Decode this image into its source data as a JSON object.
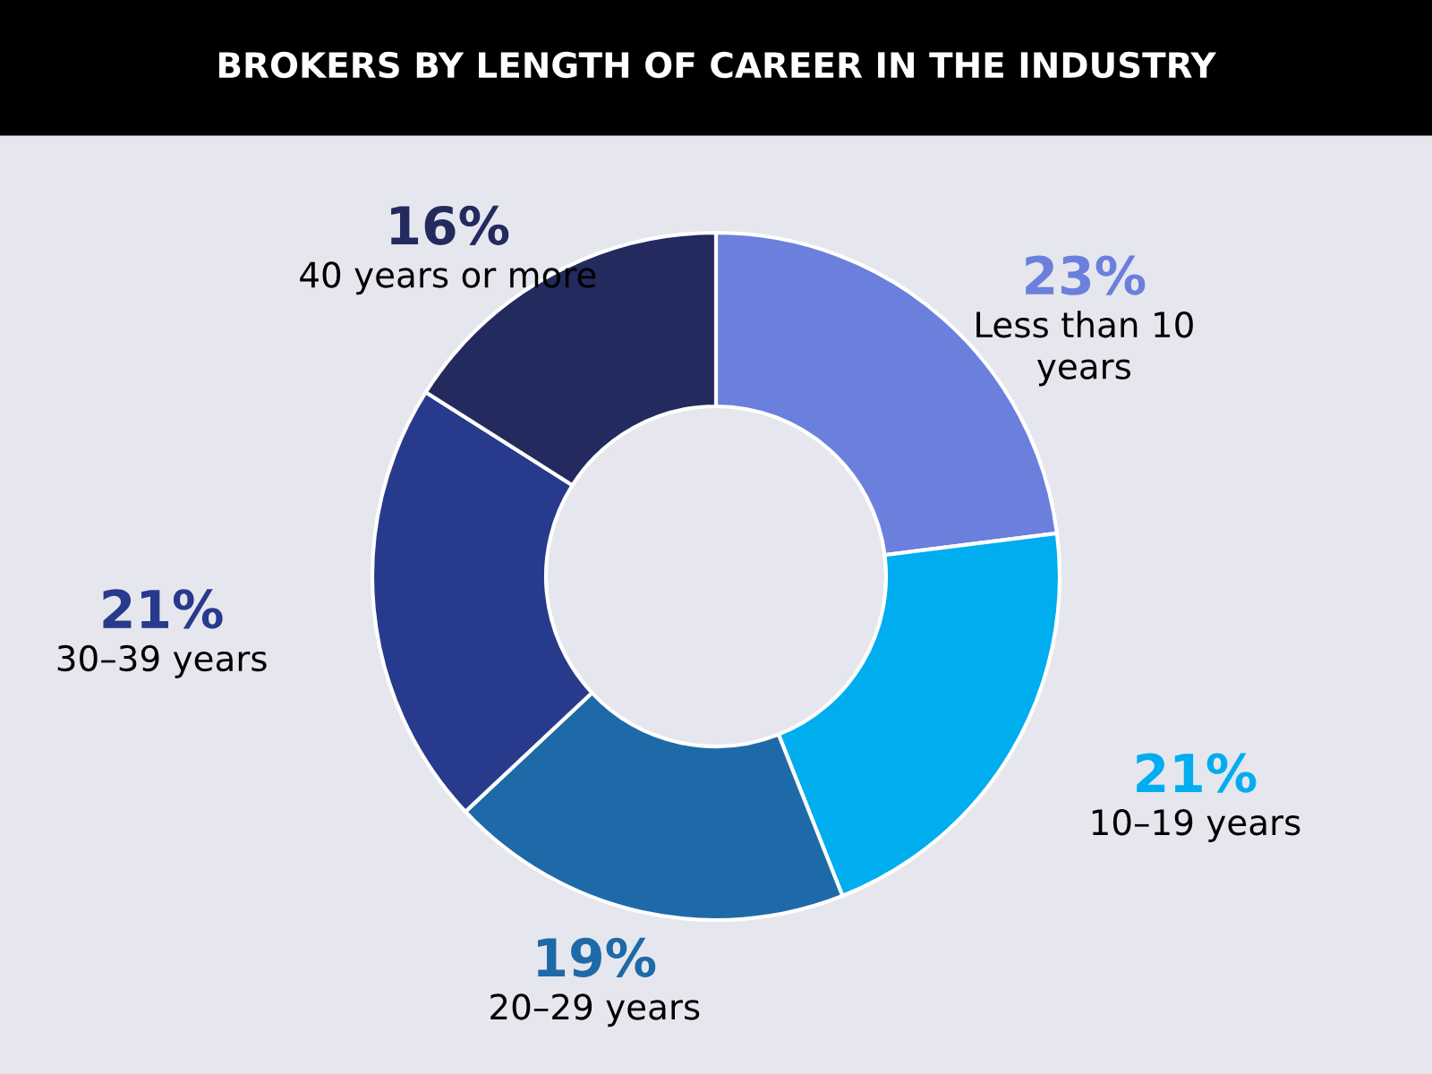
{
  "chart_data": {
    "type": "donut",
    "title": "BROKERS BY LENGTH OF CAREER IN THE INDUSTRY",
    "categories": [
      "Less than 10\nyears",
      "10–19 years",
      "20–29 years",
      "30–39 years",
      "40 years or more"
    ],
    "values": [
      23,
      21,
      19,
      21,
      16
    ],
    "value_labels": [
      "23%",
      "21%",
      "19%",
      "21%",
      "16%"
    ],
    "colors": [
      "#6b7fdc",
      "#00adef",
      "#1e6aa8",
      "#283a8c",
      "#232a5e"
    ],
    "legend": false
  }
}
